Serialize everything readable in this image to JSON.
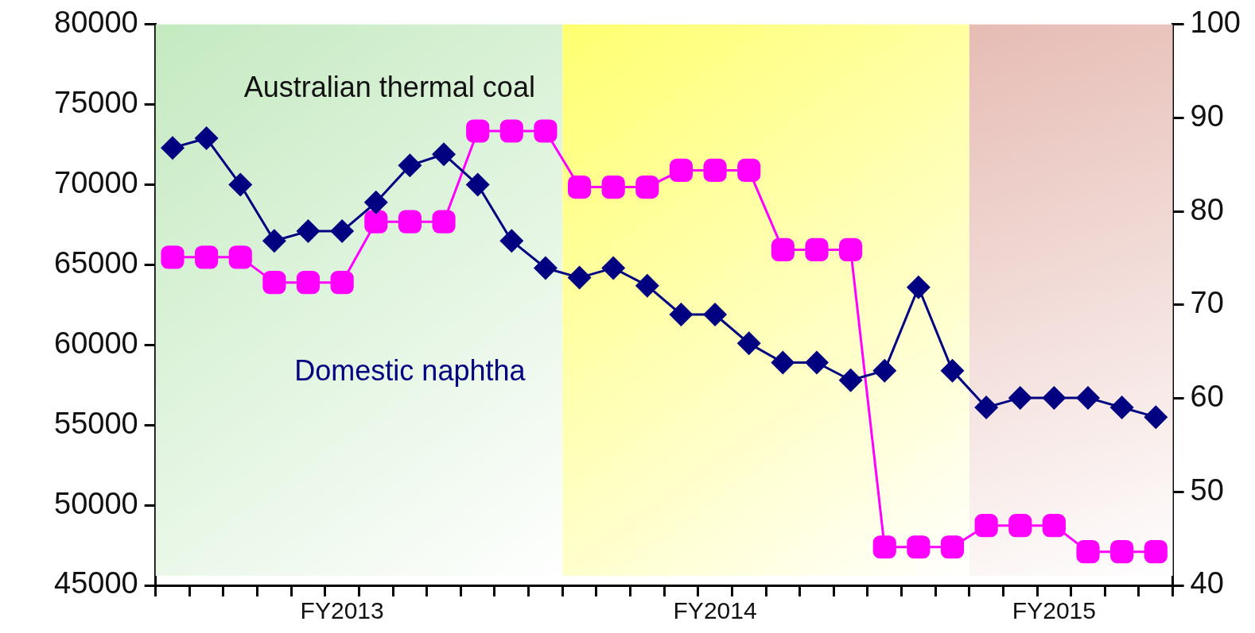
{
  "chart_data": {
    "type": "line",
    "categories": [
      null,
      null,
      null,
      null,
      null,
      "FY2013",
      null,
      null,
      null,
      null,
      null,
      null,
      null,
      null,
      null,
      null,
      "FY2014",
      null,
      null,
      null,
      null,
      null,
      null,
      null,
      null,
      null,
      "FY2015",
      null,
      null,
      null
    ],
    "series": [
      {
        "name": "Domestic naphtha",
        "color": "#000080",
        "marker": "diamond",
        "values": [
          72300,
          72900,
          70000,
          66500,
          67100,
          67100,
          68900,
          71200,
          71900,
          70000,
          66500,
          64800,
          64200,
          64800,
          63700,
          61900,
          61900,
          60100,
          58900,
          58900,
          57800,
          58400,
          63600,
          58400,
          56100,
          56700,
          56700,
          56700,
          56100,
          55500
        ]
      },
      {
        "name": "Australian thermal coal",
        "color": "#ff00ff",
        "marker": "square",
        "axis": "y2",
        "values": [
          75.1,
          75.1,
          75.1,
          72.4,
          72.4,
          72.4,
          78.9,
          78.9,
          78.9,
          88.6,
          88.6,
          88.6,
          82.6,
          82.6,
          82.6,
          84.4,
          84.4,
          84.4,
          75.9,
          75.9,
          75.9,
          44.1,
          44.1,
          44.1,
          46.4,
          46.4,
          46.4,
          43.6,
          43.6,
          43.6
        ]
      }
    ],
    "ylim": [
      45000,
      80000
    ],
    "yticks": [
      45000,
      50000,
      55000,
      60000,
      65000,
      70000,
      75000,
      80000
    ],
    "y2lim": [
      40,
      100
    ],
    "y2ticks": [
      40,
      50,
      60,
      70,
      80,
      90,
      100
    ],
    "grid": false,
    "legend": false
  }
}
